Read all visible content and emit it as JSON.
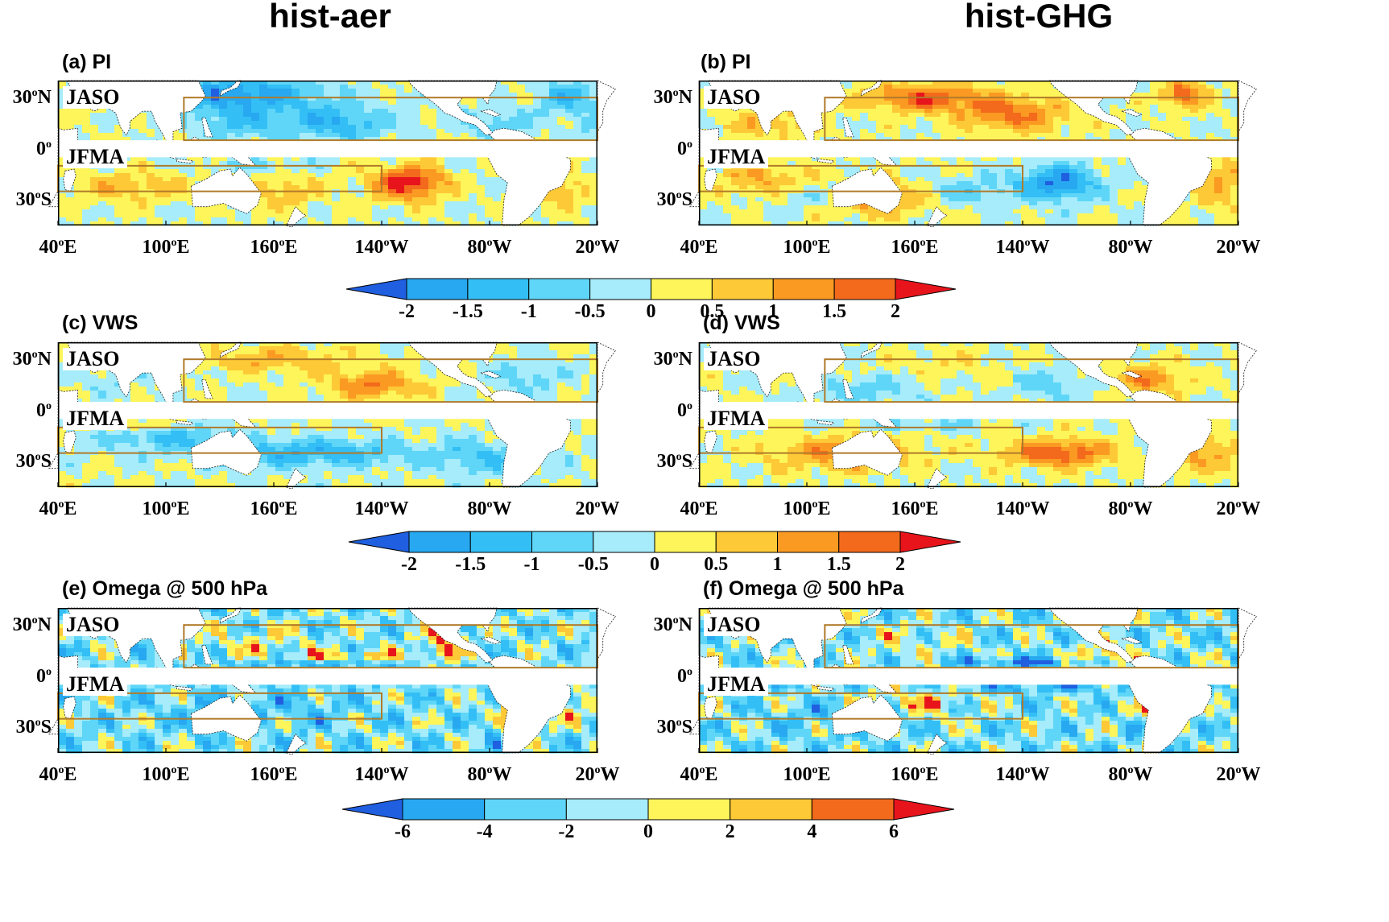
{
  "column_titles": [
    "hist-aer",
    "hist-GHG"
  ],
  "panels": [
    {
      "id": "a",
      "title": "(a) PI"
    },
    {
      "id": "b",
      "title": "(b) PI"
    },
    {
      "id": "c",
      "title": "(c) VWS"
    },
    {
      "id": "d",
      "title": "(d) VWS"
    },
    {
      "id": "e",
      "title": "(e) Omega @ 500 hPa"
    },
    {
      "id": "f",
      "title": "(f) Omega @ 500 hPa"
    }
  ],
  "band_labels": {
    "north": "JASO",
    "south": "JFMA"
  },
  "lat_labels": [
    {
      "deg": "30",
      "dir": "N"
    },
    {
      "deg": "0",
      "dir": ""
    },
    {
      "deg": "30",
      "dir": "S"
    }
  ],
  "lon_labels": [
    {
      "deg": "40",
      "dir": "E"
    },
    {
      "deg": "100",
      "dir": "E"
    },
    {
      "deg": "160",
      "dir": "E"
    },
    {
      "deg": "140",
      "dir": "W"
    },
    {
      "deg": "80",
      "dir": "W"
    },
    {
      "deg": "20",
      "dir": "W"
    }
  ],
  "colorbars": [
    {
      "id": "pi",
      "ticks": [
        "-2",
        "-1.5",
        "-1",
        "-0.5",
        "0",
        "0.5",
        "1",
        "1.5",
        "2"
      ]
    },
    {
      "id": "vws",
      "ticks": [
        "-2",
        "-1.5",
        "-1",
        "-0.5",
        "0",
        "0.5",
        "1",
        "1.5",
        "2"
      ]
    },
    {
      "id": "omega",
      "ticks": [
        "-6",
        "-4",
        "-2",
        "0",
        "2",
        "4",
        "6"
      ]
    }
  ],
  "palette": {
    "under": "#1f5fe0",
    "levels": [
      "#27a8f0",
      "#33bff5",
      "#5fd6f8",
      "#a6ecfb",
      "#fdf55a",
      "#fdc936",
      "#fb9a22",
      "#f36a1c"
    ],
    "over": "#e8141c",
    "box": "#b07a2a",
    "land": "#ffffff"
  },
  "chart_data": [
    {
      "type": "heatmap",
      "panel": "(a) PI",
      "column": "hist-aer",
      "seasons": [
        "JASO",
        "JFMA"
      ],
      "xlim": [
        "40°E",
        "20°W"
      ],
      "ylim": [
        "45°S",
        "40°N"
      ],
      "colorbar": {
        "min": -2,
        "max": 2,
        "step": 0.5
      },
      "boxes": [
        {
          "season": "JASO",
          "lon": [
            "110°E",
            "20°W"
          ],
          "lat": [
            "5°N",
            "30°N"
          ]
        },
        {
          "season": "JFMA",
          "lon": [
            "40°E",
            "140°W"
          ],
          "lat": [
            "25°S",
            "10°S"
          ]
        }
      ],
      "anomalies": [
        {
          "lon": 140,
          "lat": 32,
          "amp": -1.9,
          "rlon": 45,
          "rlat": 10
        },
        {
          "lon": 195,
          "lat": 15,
          "amp": -1.4,
          "rlon": 30,
          "rlat": 10
        },
        {
          "lon": 140,
          "lat": 15,
          "amp": -1.0,
          "rlon": 25,
          "rlat": 9
        },
        {
          "lon": 285,
          "lat": 15,
          "amp": -0.9,
          "rlon": 20,
          "rlat": 8
        },
        {
          "lon": 322,
          "lat": 30,
          "amp": -1.3,
          "rlon": 15,
          "rlat": 10
        },
        {
          "lon": 340,
          "lat": 15,
          "amp": -0.6,
          "rlon": 12,
          "rlat": 10
        },
        {
          "lon": 235,
          "lat": -20,
          "amp": 2.3,
          "rlon": 20,
          "rlat": 10
        },
        {
          "lon": 80,
          "lat": -22,
          "amp": 1.0,
          "rlon": 30,
          "rlat": 8
        },
        {
          "lon": 165,
          "lat": -25,
          "amp": 0.8,
          "rlon": 20,
          "rlat": 10
        },
        {
          "lon": 150,
          "lat": -10,
          "amp": -0.5,
          "rlon": 30,
          "rlat": 5
        },
        {
          "lon": 320,
          "lat": -25,
          "amp": 1.0,
          "rlon": 15,
          "rlat": 10
        },
        {
          "lon": 60,
          "lat": 30,
          "amp": 0.8,
          "rlon": 10,
          "rlat": 8
        }
      ]
    },
    {
      "type": "heatmap",
      "panel": "(b) PI",
      "column": "hist-GHG",
      "seasons": [
        "JASO",
        "JFMA"
      ],
      "xlim": [
        "40°E",
        "20°W"
      ],
      "ylim": [
        "45°S",
        "40°N"
      ],
      "colorbar": {
        "min": -2,
        "max": 2,
        "step": 0.5
      },
      "boxes": [
        {
          "season": "JASO",
          "lon": [
            "110°E",
            "20°W"
          ],
          "lat": [
            "5°N",
            "30°N"
          ]
        },
        {
          "season": "JFMA",
          "lon": [
            "40°E",
            "140°W"
          ],
          "lat": [
            "25°S",
            "10°S"
          ]
        }
      ],
      "anomalies": [
        {
          "lon": 165,
          "lat": 30,
          "amp": 1.8,
          "rlon": 35,
          "rlat": 8
        },
        {
          "lon": 215,
          "lat": 20,
          "amp": 1.6,
          "rlon": 30,
          "rlat": 10
        },
        {
          "lon": 310,
          "lat": 32,
          "amp": 1.8,
          "rlon": 12,
          "rlat": 8
        },
        {
          "lon": 240,
          "lat": -20,
          "amp": -2.0,
          "rlon": 22,
          "rlat": 10
        },
        {
          "lon": 140,
          "lat": -30,
          "amp": 1.2,
          "rlon": 30,
          "rlat": 10
        },
        {
          "lon": 190,
          "lat": -25,
          "amp": -0.8,
          "rlon": 25,
          "rlat": 8
        },
        {
          "lon": 100,
          "lat": -28,
          "amp": -0.6,
          "rlon": 20,
          "rlat": 8
        },
        {
          "lon": 75,
          "lat": -18,
          "amp": 1.0,
          "rlon": 25,
          "rlat": 10
        },
        {
          "lon": 330,
          "lat": -20,
          "amp": 1.0,
          "rlon": 15,
          "rlat": 15
        },
        {
          "lon": 80,
          "lat": 15,
          "amp": 0.9,
          "rlon": 25,
          "rlat": 10
        }
      ]
    },
    {
      "type": "heatmap",
      "panel": "(c) VWS",
      "column": "hist-aer",
      "seasons": [
        "JASO",
        "JFMA"
      ],
      "xlim": [
        "40°E",
        "20°W"
      ],
      "ylim": [
        "45°S",
        "40°N"
      ],
      "colorbar": {
        "min": -2,
        "max": 2,
        "step": 0.5
      },
      "boxes": [
        {
          "season": "JASO",
          "lon": [
            "110°E",
            "20°W"
          ],
          "lat": [
            "5°N",
            "30°N"
          ]
        },
        {
          "season": "JFMA",
          "lon": [
            "40°E",
            "140°W"
          ],
          "lat": [
            "25°S",
            "10°S"
          ]
        }
      ],
      "anomalies": [
        {
          "lon": 215,
          "lat": 15,
          "amp": 1.5,
          "rlon": 25,
          "rlat": 8
        },
        {
          "lon": 160,
          "lat": 30,
          "amp": 0.9,
          "rlon": 40,
          "rlat": 8
        },
        {
          "lon": 300,
          "lat": 20,
          "amp": -0.7,
          "rlon": 20,
          "rlat": 10
        },
        {
          "lon": 70,
          "lat": 20,
          "amp": -0.4,
          "rlon": 20,
          "rlat": 10
        },
        {
          "lon": 180,
          "lat": -25,
          "amp": -1.4,
          "rlon": 60,
          "rlat": 8
        },
        {
          "lon": 100,
          "lat": -15,
          "amp": -1.0,
          "rlon": 40,
          "rlat": 8
        },
        {
          "lon": 280,
          "lat": -28,
          "amp": -1.0,
          "rlon": 30,
          "rlat": 10
        },
        {
          "lon": 80,
          "lat": -8,
          "amp": 0.9,
          "rlon": 25,
          "rlat": 4
        }
      ]
    },
    {
      "type": "heatmap",
      "panel": "(d) VWS",
      "column": "hist-GHG",
      "seasons": [
        "JASO",
        "JFMA"
      ],
      "xlim": [
        "40°E",
        "20°W"
      ],
      "ylim": [
        "45°S",
        "40°N"
      ],
      "colorbar": {
        "min": -2,
        "max": 2,
        "step": 0.5
      },
      "boxes": [
        {
          "season": "JASO",
          "lon": [
            "110°E",
            "20°W"
          ],
          "lat": [
            "5°N",
            "30°N"
          ]
        },
        {
          "season": "JFMA",
          "lon": [
            "40°E",
            "140°W"
          ],
          "lat": [
            "25°S",
            "10°S"
          ]
        }
      ],
      "anomalies": [
        {
          "lon": 290,
          "lat": 18,
          "amp": 1.4,
          "rlon": 20,
          "rlat": 8
        },
        {
          "lon": 235,
          "lat": 15,
          "amp": -0.8,
          "rlon": 20,
          "rlat": 8
        },
        {
          "lon": 130,
          "lat": 12,
          "amp": -0.8,
          "rlon": 30,
          "rlat": 8
        },
        {
          "lon": 175,
          "lat": 28,
          "amp": 0.4,
          "rlon": 30,
          "rlat": 8
        },
        {
          "lon": 240,
          "lat": -25,
          "amp": 1.9,
          "rlon": 30,
          "rlat": 8
        },
        {
          "lon": 120,
          "lat": -25,
          "amp": 1.4,
          "rlon": 40,
          "rlat": 10
        },
        {
          "lon": 320,
          "lat": -25,
          "amp": 1.2,
          "rlon": 20,
          "rlat": 10
        },
        {
          "lon": 160,
          "lat": -8,
          "amp": -0.6,
          "rlon": 40,
          "rlat": 4
        }
      ]
    },
    {
      "type": "heatmap",
      "panel": "(e) Omega @ 500 hPa",
      "column": "hist-aer",
      "seasons": [
        "JASO",
        "JFMA"
      ],
      "xlim": [
        "40°E",
        "20°W"
      ],
      "ylim": [
        "45°S",
        "40°N"
      ],
      "colorbar": {
        "min": -6,
        "max": 6,
        "step": 2
      },
      "boxes": [
        {
          "season": "JASO",
          "lon": [
            "110°E",
            "20°W"
          ],
          "lat": [
            "5°N",
            "30°N"
          ]
        },
        {
          "season": "JFMA",
          "lon": [
            "40°E",
            "140°W"
          ],
          "lat": [
            "25°S",
            "10°S"
          ]
        }
      ],
      "anomalies": [
        {
          "lon": 70,
          "lat": 32,
          "amp": 6.5,
          "rlon": 15,
          "rlat": 8
        },
        {
          "lon": 90,
          "lat": 25,
          "amp": -3.5,
          "rlon": 8,
          "rlat": 6
        },
        {
          "lon": 255,
          "lat": 20,
          "amp": 5.5,
          "rlon": 12,
          "rlat": 10
        },
        {
          "lon": 210,
          "lat": 12,
          "amp": 4.0,
          "rlon": 40,
          "rlat": 3
        },
        {
          "lon": 180,
          "lat": 7,
          "amp": -4.0,
          "rlon": 50,
          "rlat": 2
        },
        {
          "lon": 150,
          "lat": 20,
          "amp": 2.5,
          "rlon": 30,
          "rlat": 8
        },
        {
          "lon": 290,
          "lat": -20,
          "amp": 5.0,
          "rlon": 10,
          "rlat": 12
        },
        {
          "lon": 282,
          "lat": -30,
          "amp": -6.0,
          "rlon": 3,
          "rlat": 10
        },
        {
          "lon": 150,
          "lat": -20,
          "amp": -2.0,
          "rlon": 60,
          "rlat": 12
        },
        {
          "lon": 325,
          "lat": -15,
          "amp": 3.0,
          "rlon": 15,
          "rlat": 12
        }
      ]
    },
    {
      "type": "heatmap",
      "panel": "(f) Omega @ 500 hPa",
      "column": "hist-GHG",
      "seasons": [
        "JASO",
        "JFMA"
      ],
      "xlim": [
        "40°E",
        "20°W"
      ],
      "ylim": [
        "45°S",
        "40°N"
      ],
      "colorbar": {
        "min": -6,
        "max": 6,
        "step": 2
      },
      "boxes": [
        {
          "season": "JASO",
          "lon": [
            "110°E",
            "20°W"
          ],
          "lat": [
            "5°N",
            "30°N"
          ]
        },
        {
          "season": "JFMA",
          "lon": [
            "40°E",
            "140°W"
          ],
          "lat": [
            "25°S",
            "10°S"
          ]
        }
      ],
      "anomalies": [
        {
          "lon": 80,
          "lat": 32,
          "amp": -5.0,
          "rlon": 15,
          "rlat": 8
        },
        {
          "lon": 220,
          "lat": 8,
          "amp": -5.5,
          "rlon": 40,
          "rlat": 3
        },
        {
          "lon": 265,
          "lat": 12,
          "amp": 5.5,
          "rlon": 15,
          "rlat": 8
        },
        {
          "lon": 230,
          "lat": -7,
          "amp": -4.5,
          "rlon": 50,
          "rlat": 2
        },
        {
          "lon": 160,
          "lat": -15,
          "amp": 4.0,
          "rlon": 30,
          "rlat": 8
        },
        {
          "lon": 290,
          "lat": -20,
          "amp": 5.0,
          "rlon": 10,
          "rlat": 12
        },
        {
          "lon": 282,
          "lat": -30,
          "amp": -6.0,
          "rlon": 3,
          "rlat": 10
        },
        {
          "lon": 110,
          "lat": -25,
          "amp": -2.0,
          "rlon": 30,
          "rlat": 10
        },
        {
          "lon": 160,
          "lat": 20,
          "amp": 2.0,
          "rlon": 30,
          "rlat": 10
        }
      ]
    }
  ]
}
